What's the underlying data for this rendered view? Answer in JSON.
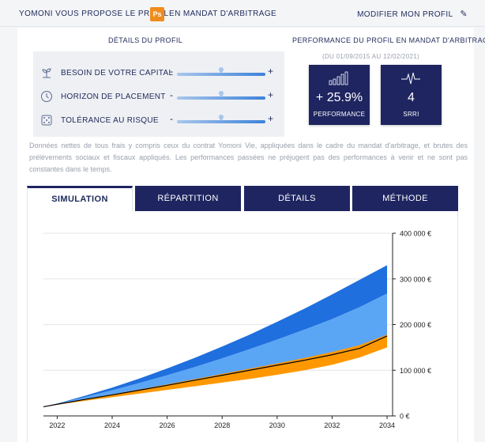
{
  "header": {
    "title_part1": "YOMONI VOUS PROPOSE LE PROFIL",
    "badge": "Ps",
    "title_part2": "EN MANDAT D'ARBITRAGE",
    "modify_label": "MODIFIER MON PROFIL",
    "badge_color": "#f08c1c"
  },
  "profile": {
    "title": "DÉTAILS DU PROFIL",
    "rows": [
      {
        "label": "BESOIN DE VOTRE CAPITAL",
        "icon": "plant-icon",
        "level": 0.55
      },
      {
        "label": "HORIZON DE PLACEMENT",
        "icon": "clock-icon",
        "level": 0.55
      },
      {
        "label": "TOLÉRANCE AU RISQUE",
        "icon": "dice-icon",
        "level": 0.55
      }
    ]
  },
  "performance": {
    "title": "PERFORMANCE DU PROFIL EN MANDAT D'ARBITRAGE",
    "period": "(DU 01/09/2015 AU 12/02/2021)",
    "kpis": [
      {
        "value": "+ 25.9%",
        "label": "PERFORMANCE",
        "icon": "bar-chart-icon"
      },
      {
        "value": "4",
        "label": "SRRI",
        "icon": "pulse-icon"
      }
    ]
  },
  "disclaimer": "Données nettes de tous frais y compris ceux du contrat Yomoni Vie, appliquées dans le cadre du mandat d'arbitrage, et brutes des prélèvements sociaux et fiscaux appliqués. Les performances passées ne préjugent pas des performances à venir et ne sont pas constantes dans le temps.",
  "tabs": [
    {
      "label": "SIMULATION",
      "active": true
    },
    {
      "label": "RÉPARTITION",
      "active": false
    },
    {
      "label": "DÉTAILS",
      "active": false
    },
    {
      "label": "MÉTHODE",
      "active": false
    }
  ],
  "colors": {
    "navy": "#1e2560",
    "blue_dark": "#1f6fde",
    "blue_light": "#5ba5f5",
    "orange": "#ff9800"
  },
  "chart_data": {
    "type": "area",
    "x": [
      2021.5,
      2022,
      2023,
      2024,
      2025,
      2026,
      2027,
      2028,
      2029,
      2030,
      2031,
      2032,
      2033,
      2034
    ],
    "xticks": [
      "2022",
      "2024",
      "2026",
      "2028",
      "2030",
      "2032",
      "2034"
    ],
    "yticks": [
      "0 €",
      "100 000 €",
      "200 000 €",
      "300 000 €",
      "400 000 €"
    ],
    "ylim": [
      0,
      400000
    ],
    "xlim": [
      2021.5,
      2034.2
    ],
    "series": [
      {
        "role": "upper-optimistic",
        "values": [
          20000,
          27000,
          44000,
          62000,
          82000,
          104000,
          127000,
          152000,
          178000,
          206000,
          235000,
          266000,
          298000,
          330000
        ]
      },
      {
        "role": "upper-probable",
        "values": [
          20000,
          26500,
          41000,
          56000,
          72000,
          89000,
          107000,
          126000,
          146000,
          167000,
          189000,
          212000,
          238000,
          268000
        ]
      },
      {
        "role": "median",
        "values": [
          20000,
          25500,
          36000,
          46000,
          56500,
          67000,
          78000,
          89000,
          100000,
          111000,
          122000,
          134000,
          148000,
          175000
        ]
      },
      {
        "role": "upper-orange",
        "values": [
          20000,
          25800,
          36800,
          47200,
          58000,
          69000,
          80500,
          92000,
          103500,
          115000,
          127000,
          140000,
          155000,
          178000
        ]
      },
      {
        "role": "lower-pessimistic",
        "values": [
          20000,
          24500,
          33000,
          41000,
          49000,
          57000,
          65000,
          73000,
          81000,
          90000,
          100000,
          112000,
          128000,
          150000
        ]
      }
    ]
  }
}
